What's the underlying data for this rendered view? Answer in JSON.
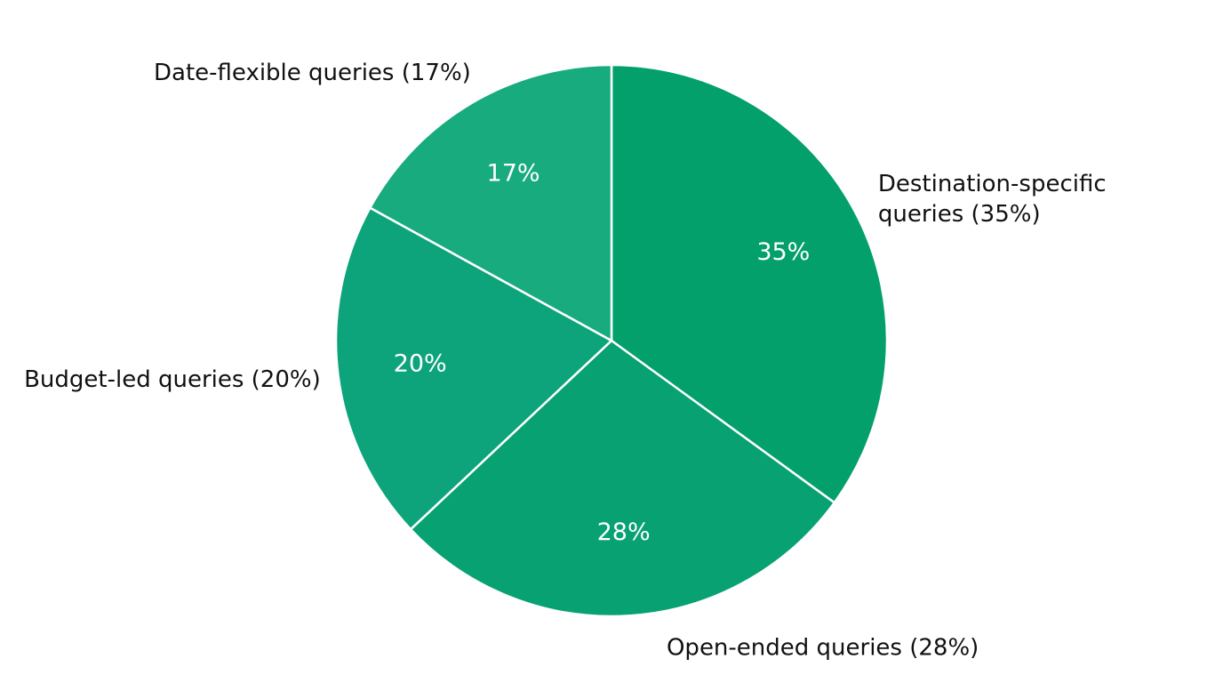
{
  "chart_data": {
    "type": "pie",
    "categories": [
      "Destination-specific queries (35%)",
      "Open-ended queries (28%)",
      "Budget-led queries (20%)",
      "Date-flexible queries (17%)"
    ],
    "values": [
      35,
      28,
      20,
      17
    ],
    "value_labels": [
      "35%",
      "28%",
      "20%",
      "17%"
    ],
    "colors": [
      "#03a06c",
      "#08a172",
      "#0ea47b",
      "#18ab7e"
    ]
  }
}
